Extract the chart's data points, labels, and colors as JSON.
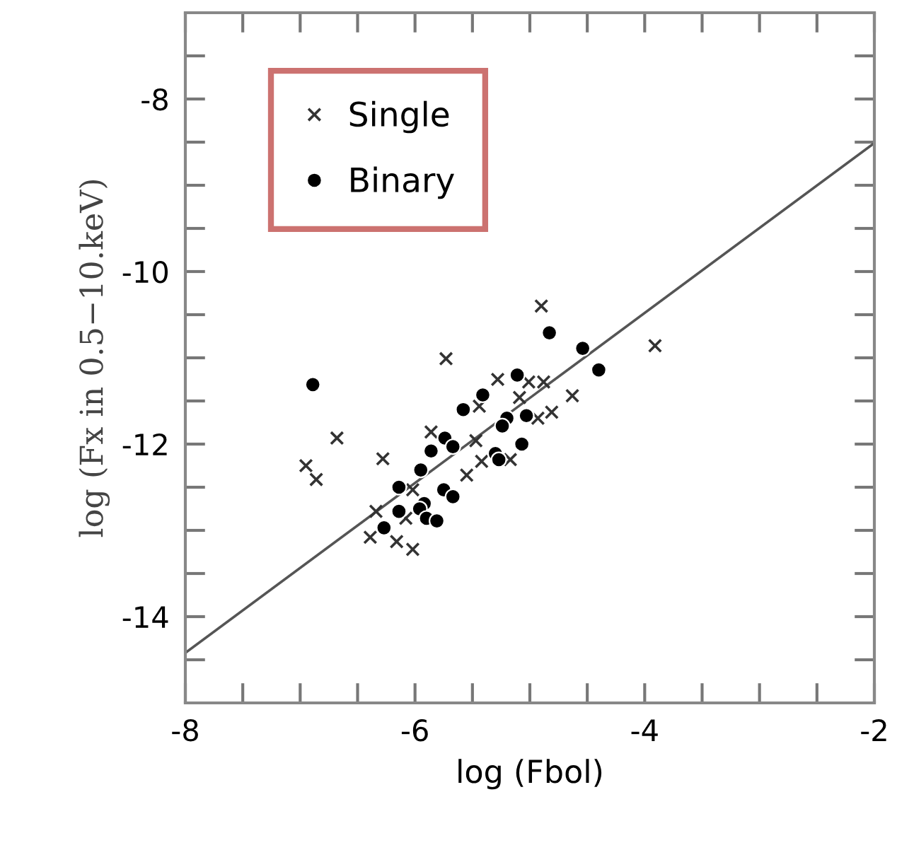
{
  "chart_data": {
    "type": "scatter",
    "xlabel": "log (Fbol)",
    "ylabel": "log (Fx in 0.5−10.keV)",
    "xlim": [
      -8,
      -2
    ],
    "ylim": [
      -15,
      -7
    ],
    "xticks": [
      -8,
      {
        "value": -7.5,
        "label": null
      },
      {
        "value": -7,
        "label": null
      },
      {
        "value": -6.5,
        "label": null
      },
      -6,
      {
        "value": -5.5,
        "label": null
      },
      {
        "value": -5,
        "label": null
      },
      {
        "value": -4.5,
        "label": null
      },
      -4,
      {
        "value": -3.5,
        "label": null
      },
      {
        "value": -3,
        "label": null
      },
      {
        "value": -2.5,
        "label": null
      },
      -2
    ],
    "yticks": [
      {
        "value": -14.5,
        "label": null
      },
      -14,
      {
        "value": -13.5,
        "label": null
      },
      {
        "value": -13,
        "label": null
      },
      {
        "value": -12.5,
        "label": null
      },
      -12,
      {
        "value": -11.5,
        "label": null
      },
      {
        "value": -11,
        "label": null
      },
      {
        "value": -10.5,
        "label": null
      },
      -10,
      {
        "value": -9.5,
        "label": null
      },
      {
        "value": -9,
        "label": null
      },
      {
        "value": -8.5,
        "label": null
      },
      -8,
      {
        "value": -7.5,
        "label": null
      }
    ],
    "grid": false,
    "legend": "top left",
    "series": [
      {
        "name": "Single",
        "color": "#333333",
        "marker": "cross",
        "x": [
          -4.9,
          -3.91,
          -5.73,
          -6.68,
          -6.95,
          -6.86,
          -6.28,
          -5.28,
          -5.01,
          -4.88,
          -4.63,
          -5.09,
          -5.44,
          -4.93,
          -4.81,
          -5.86,
          -5.47,
          -5.42,
          -5.55,
          -5.17,
          -6.34,
          -6.39,
          -6.16,
          -6.02,
          -6.02,
          -6.08
        ],
        "values": [
          -10.4,
          -10.86,
          -11.01,
          -11.93,
          -12.25,
          -12.41,
          -12.17,
          -11.25,
          -11.28,
          -11.28,
          -11.44,
          -11.46,
          -11.56,
          -11.7,
          -11.63,
          -11.86,
          -11.96,
          -12.2,
          -12.36,
          -12.18,
          -12.78,
          -13.08,
          -13.13,
          -13.22,
          -12.53,
          -12.86
        ]
      },
      {
        "name": "Binary",
        "color": "#000000",
        "marker": "circle",
        "x": [
          -6.89,
          -4.83,
          -4.54,
          -4.4,
          -5.11,
          -5.41,
          -5.58,
          -5.03,
          -5.2,
          -5.24,
          -5.74,
          -5.67,
          -5.86,
          -5.07,
          -5.3,
          -5.27,
          -5.95,
          -6.14,
          -5.75,
          -5.67,
          -5.92,
          -6.14,
          -5.96,
          -5.9,
          -5.81,
          -6.27
        ],
        "values": [
          -11.31,
          -10.71,
          -10.89,
          -11.14,
          -11.2,
          -11.43,
          -11.6,
          -11.67,
          -11.7,
          -11.79,
          -11.93,
          -12.03,
          -12.08,
          -12.0,
          -12.11,
          -12.18,
          -12.3,
          -12.5,
          -12.53,
          -12.61,
          -12.69,
          -12.78,
          -12.75,
          -12.86,
          -12.89,
          -12.97
        ]
      },
      {
        "type": "line",
        "color": "#555555",
        "marker": "none",
        "x": [
          -8,
          -2
        ],
        "values": [
          -14.42,
          -8.51
        ]
      }
    ]
  }
}
